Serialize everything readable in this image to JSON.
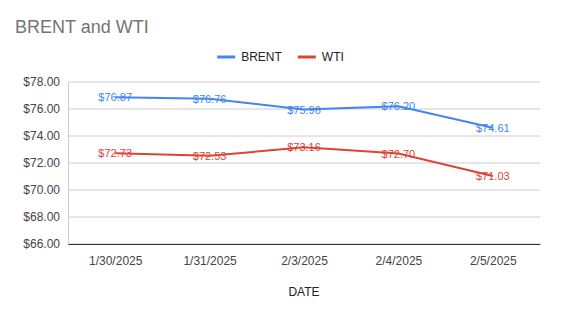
{
  "chart_data": {
    "type": "line",
    "title": "BRENT and WTI",
    "x_label": "DATE",
    "categories": [
      "1/30/2025",
      "1/31/2025",
      "2/3/2025",
      "2/4/2025",
      "2/5/2025"
    ],
    "series": [
      {
        "name": "BRENT",
        "color": "#4285f4",
        "values": [
          76.87,
          76.76,
          75.96,
          76.2,
          74.61
        ],
        "value_labels": [
          "$76.87",
          "$76.76",
          "$75.96",
          "$76.20",
          "$74.61"
        ]
      },
      {
        "name": "WTI",
        "color": "#db4437",
        "values": [
          72.73,
          72.53,
          73.16,
          72.7,
          71.03
        ],
        "value_labels": [
          "$72.73",
          "$72.53",
          "$73.16",
          "$72.70",
          "$71.03"
        ]
      }
    ],
    "ylim": [
      66,
      78
    ],
    "yticks": [
      {
        "value": 66,
        "label": "$66.00"
      },
      {
        "value": 68,
        "label": "$68.00"
      },
      {
        "value": 70,
        "label": "$70.00"
      },
      {
        "value": 72,
        "label": "$72.00"
      },
      {
        "value": 74,
        "label": "$74.00"
      },
      {
        "value": 76,
        "label": "$76.00"
      },
      {
        "value": 78,
        "label": "$78.00"
      }
    ],
    "grid": true,
    "legend": "top",
    "data_labels": true,
    "line_style": "solid"
  }
}
